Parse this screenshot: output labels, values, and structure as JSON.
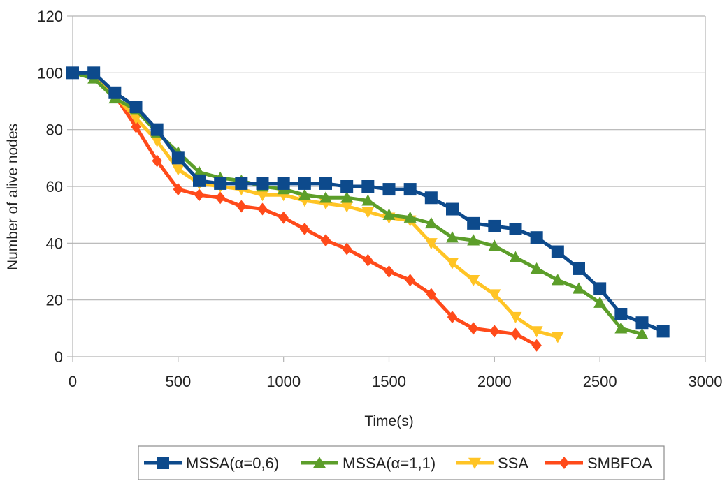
{
  "chart_data": {
    "type": "line",
    "title": "",
    "xlabel": "Time(s)",
    "ylabel": "Number of alive nodes",
    "xlim": [
      0,
      3000
    ],
    "ylim": [
      0,
      120
    ],
    "x_ticks": [
      "0",
      "500",
      "1000",
      "1500",
      "2000",
      "2500",
      "3000"
    ],
    "y_ticks": [
      "0",
      "20",
      "40",
      "60",
      "80",
      "100",
      "120"
    ],
    "grid": "horizontal",
    "legend_position": "bottom",
    "series": [
      {
        "name": "MSSA(α=0,6)",
        "color": "#0d4a8c",
        "marker": "square",
        "x": [
          0,
          100,
          200,
          300,
          400,
          500,
          600,
          700,
          800,
          900,
          1000,
          1100,
          1200,
          1300,
          1400,
          1500,
          1600,
          1700,
          1800,
          1900,
          2000,
          2100,
          2200,
          2300,
          2400,
          2500,
          2600,
          2700,
          2800
        ],
        "y": [
          100,
          100,
          93,
          88,
          80,
          70,
          62,
          61,
          61,
          61,
          61,
          61,
          61,
          60,
          60,
          59,
          59,
          56,
          52,
          47,
          46,
          45,
          42,
          37,
          31,
          24,
          15,
          12,
          9
        ]
      },
      {
        "name": "MSSA(α=1,1)",
        "color": "#5c9e2a",
        "marker": "triangle-up",
        "x": [
          0,
          100,
          200,
          300,
          400,
          500,
          600,
          700,
          800,
          900,
          1000,
          1100,
          1200,
          1300,
          1400,
          1500,
          1600,
          1700,
          1800,
          1900,
          2000,
          2100,
          2200,
          2300,
          2400,
          2500,
          2600,
          2700
        ],
        "y": [
          100,
          98,
          91,
          87,
          79,
          72,
          65,
          63,
          62,
          60,
          59,
          57,
          56,
          56,
          55,
          50,
          49,
          47,
          42,
          41,
          39,
          35,
          31,
          27,
          24,
          19,
          10,
          8
        ]
      },
      {
        "name": "SSA",
        "color": "#ffc425",
        "marker": "triangle-down",
        "x": [
          0,
          100,
          200,
          300,
          400,
          500,
          600,
          700,
          800,
          900,
          1000,
          1100,
          1200,
          1300,
          1400,
          1500,
          1600,
          1700,
          1800,
          1900,
          2000,
          2100,
          2200,
          2300
        ],
        "y": [
          100,
          99,
          92,
          84,
          76,
          66,
          61,
          60,
          59,
          57,
          57,
          55,
          54,
          53,
          51,
          49,
          48,
          40,
          33,
          27,
          22,
          14,
          9,
          7
        ]
      },
      {
        "name": "SMBFOA",
        "color": "#ff4a1a",
        "marker": "diamond",
        "x": [
          0,
          100,
          200,
          300,
          400,
          500,
          600,
          700,
          800,
          900,
          1000,
          1100,
          1200,
          1300,
          1400,
          1500,
          1600,
          1700,
          1800,
          1900,
          2000,
          2100,
          2200
        ],
        "y": [
          100,
          99,
          92,
          81,
          69,
          59,
          57,
          56,
          53,
          52,
          49,
          45,
          41,
          38,
          34,
          30,
          27,
          22,
          14,
          10,
          9,
          8,
          4
        ]
      }
    ]
  }
}
